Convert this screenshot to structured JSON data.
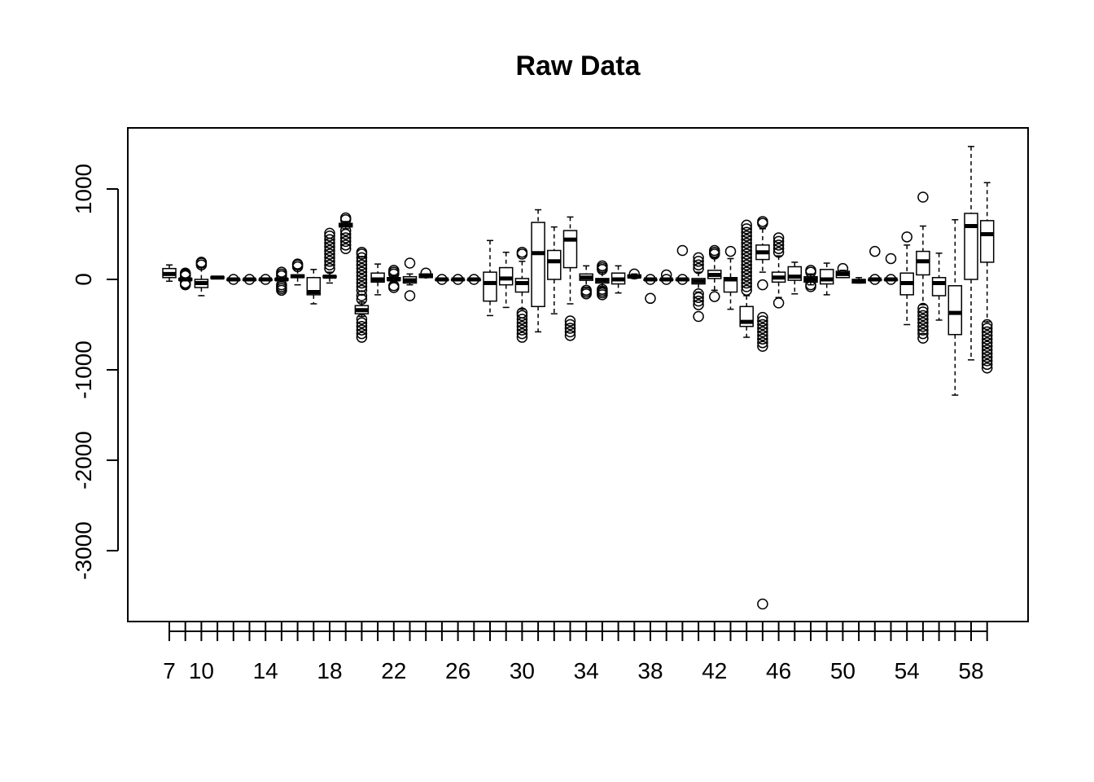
{
  "chart_data": {
    "type": "box",
    "title": "Raw Data",
    "xlabel": "",
    "ylabel": "",
    "ylim": [
      -3720,
      1680
    ],
    "y_ticks": [
      1000,
      0,
      -1000,
      -2000,
      -3000
    ],
    "y_tick_labels": [
      "1000",
      "0",
      "-1000",
      "-2000",
      "-3000"
    ],
    "x_tick_labels": [
      "7",
      "10",
      "14",
      "18",
      "22",
      "26",
      "30",
      "34",
      "38",
      "42",
      "46",
      "50",
      "54",
      "58"
    ],
    "boxes": [
      {
        "pos": 1,
        "q1": 20,
        "median": 60,
        "q3": 120,
        "lo": -20,
        "hi": 160,
        "outliers": []
      },
      {
        "pos": 2,
        "q1": -10,
        "median": 0,
        "q3": 10,
        "lo": -10,
        "hi": 10,
        "outliers": [
          -60,
          -50,
          -40,
          40,
          50,
          60,
          70
        ]
      },
      {
        "pos": 3,
        "q1": -90,
        "median": -40,
        "q3": 0,
        "lo": -180,
        "hi": 130,
        "outliers": [
          160,
          180,
          190
        ]
      },
      {
        "pos": 4,
        "q1": 10,
        "median": 20,
        "q3": 30,
        "lo": 10,
        "hi": 30,
        "outliers": []
      },
      {
        "pos": 5,
        "q1": 0,
        "median": 0,
        "q3": 0,
        "lo": 0,
        "hi": 0,
        "outliers": [
          0
        ]
      },
      {
        "pos": 6,
        "q1": 0,
        "median": 0,
        "q3": 0,
        "lo": 0,
        "hi": 0,
        "outliers": [
          0
        ]
      },
      {
        "pos": 7,
        "q1": 0,
        "median": 0,
        "q3": 0,
        "lo": 0,
        "hi": 0,
        "outliers": [
          0
        ]
      },
      {
        "pos": 8,
        "q1": -10,
        "median": 0,
        "q3": 10,
        "lo": -10,
        "hi": 10,
        "outliers": [
          -120,
          -100,
          -80,
          -60,
          40,
          60,
          80
        ]
      },
      {
        "pos": 9,
        "q1": 20,
        "median": 35,
        "q3": 50,
        "lo": -60,
        "hi": 110,
        "outliers": [
          140,
          160,
          170
        ]
      },
      {
        "pos": 10,
        "q1": -170,
        "median": -140,
        "q3": 20,
        "lo": -270,
        "hi": 110,
        "outliers": []
      },
      {
        "pos": 11,
        "q1": 20,
        "median": 30,
        "q3": 40,
        "lo": -40,
        "hi": 80,
        "outliers": [
          120,
          160,
          200,
          240,
          280,
          320,
          360,
          400,
          440,
          480,
          510
        ]
      },
      {
        "pos": 12,
        "q1": 580,
        "median": 600,
        "q3": 620,
        "lo": 560,
        "hi": 640,
        "outliers": [
          340,
          380,
          420,
          460,
          500,
          540,
          660,
          680
        ]
      },
      {
        "pos": 13,
        "q1": -380,
        "median": -340,
        "q3": -290,
        "lo": -410,
        "hi": -250,
        "outliers": [
          -640,
          -600,
          -560,
          -520,
          -480,
          -440,
          -220,
          -180,
          -120,
          -80,
          -40,
          0,
          40,
          80,
          120,
          160,
          200,
          240,
          280,
          300
        ]
      },
      {
        "pos": 14,
        "q1": -30,
        "median": 0,
        "q3": 70,
        "lo": -170,
        "hi": 170,
        "outliers": []
      },
      {
        "pos": 15,
        "q1": -10,
        "median": 0,
        "q3": 20,
        "lo": -30,
        "hi": 40,
        "outliers": [
          -90,
          -70,
          60,
          80,
          100
        ]
      },
      {
        "pos": 16,
        "q1": -40,
        "median": -10,
        "q3": 30,
        "lo": -60,
        "hi": 60,
        "outliers": [
          -180,
          180
        ]
      },
      {
        "pos": 17,
        "q1": 20,
        "median": 40,
        "q3": 60,
        "lo": 20,
        "hi": 60,
        "outliers": [
          70
        ]
      },
      {
        "pos": 18,
        "q1": 0,
        "median": 0,
        "q3": 0,
        "lo": 0,
        "hi": 0,
        "outliers": [
          0
        ]
      },
      {
        "pos": 19,
        "q1": 0,
        "median": 0,
        "q3": 0,
        "lo": 0,
        "hi": 0,
        "outliers": [
          0
        ]
      },
      {
        "pos": 20,
        "q1": 0,
        "median": 0,
        "q3": 0,
        "lo": 0,
        "hi": 0,
        "outliers": [
          0
        ]
      },
      {
        "pos": 21,
        "q1": -240,
        "median": -40,
        "q3": 80,
        "lo": -400,
        "hi": 430,
        "outliers": []
      },
      {
        "pos": 22,
        "q1": -60,
        "median": 10,
        "q3": 130,
        "lo": -310,
        "hi": 300,
        "outliers": []
      },
      {
        "pos": 23,
        "q1": -140,
        "median": -40,
        "q3": 10,
        "lo": -330,
        "hi": 200,
        "outliers": [
          -640,
          -600,
          -560,
          -520,
          -480,
          -440,
          -400,
          -370,
          280,
          300
        ]
      },
      {
        "pos": 24,
        "q1": -300,
        "median": 290,
        "q3": 630,
        "lo": -580,
        "hi": 770,
        "outliers": []
      },
      {
        "pos": 25,
        "q1": 0,
        "median": 200,
        "q3": 320,
        "lo": -380,
        "hi": 580,
        "outliers": []
      },
      {
        "pos": 26,
        "q1": 130,
        "median": 440,
        "q3": 540,
        "lo": -270,
        "hi": 690,
        "outliers": [
          -620,
          -580,
          -540,
          -500,
          -460
        ]
      },
      {
        "pos": 27,
        "q1": -10,
        "median": 20,
        "q3": 60,
        "lo": -90,
        "hi": 150,
        "outliers": [
          -160,
          -140,
          -120
        ]
      },
      {
        "pos": 28,
        "q1": -40,
        "median": -10,
        "q3": 10,
        "lo": -90,
        "hi": 80,
        "outliers": [
          -170,
          -150,
          -130,
          -110,
          110,
          130,
          150
        ]
      },
      {
        "pos": 29,
        "q1": -50,
        "median": 0,
        "q3": 70,
        "lo": -150,
        "hi": 150,
        "outliers": []
      },
      {
        "pos": 30,
        "q1": 20,
        "median": 30,
        "q3": 50,
        "lo": 10,
        "hi": 60,
        "outliers": [
          60
        ]
      },
      {
        "pos": 31,
        "q1": 0,
        "median": 0,
        "q3": 0,
        "lo": 0,
        "hi": 0,
        "outliers": [
          -210,
          0
        ]
      },
      {
        "pos": 32,
        "q1": 0,
        "median": 0,
        "q3": 0,
        "lo": 0,
        "hi": 0,
        "outliers": [
          0,
          50
        ]
      },
      {
        "pos": 33,
        "q1": 0,
        "median": 0,
        "q3": 0,
        "lo": 0,
        "hi": 0,
        "outliers": [
          0,
          320
        ]
      },
      {
        "pos": 34,
        "q1": -50,
        "median": -20,
        "q3": 10,
        "lo": -140,
        "hi": 80,
        "outliers": [
          -410,
          -280,
          -240,
          -200,
          -160,
          120,
          160,
          200,
          240
        ]
      },
      {
        "pos": 35,
        "q1": 10,
        "median": 50,
        "q3": 100,
        "lo": -120,
        "hi": 240,
        "outliers": [
          -190,
          280,
          300,
          320
        ]
      },
      {
        "pos": 36,
        "q1": -140,
        "median": 0,
        "q3": 20,
        "lo": -330,
        "hi": 230,
        "outliers": [
          310
        ]
      },
      {
        "pos": 37,
        "q1": -520,
        "median": -470,
        "q3": -300,
        "lo": -640,
        "hi": -180,
        "outliers": [
          -120,
          -80,
          -40,
          0,
          40,
          80,
          120,
          160,
          200,
          240,
          280,
          320,
          360,
          400,
          440,
          480,
          520,
          560,
          600
        ]
      },
      {
        "pos": 38,
        "q1": 220,
        "median": 300,
        "q3": 380,
        "lo": 80,
        "hi": 560,
        "outliers": [
          -3590,
          -740,
          -700,
          -660,
          -620,
          -580,
          -540,
          -500,
          -460,
          -420,
          -60,
          620,
          640
        ]
      },
      {
        "pos": 39,
        "q1": -30,
        "median": 20,
        "q3": 80,
        "lo": -200,
        "hi": 260,
        "outliers": [
          -260,
          300,
          340,
          380,
          420,
          460
        ]
      },
      {
        "pos": 40,
        "q1": -10,
        "median": 30,
        "q3": 140,
        "lo": -160,
        "hi": 190,
        "outliers": []
      },
      {
        "pos": 41,
        "q1": -30,
        "median": 0,
        "q3": 30,
        "lo": -60,
        "hi": 60,
        "outliers": [
          -80,
          -60,
          80,
          100
        ]
      },
      {
        "pos": 42,
        "q1": -50,
        "median": 0,
        "q3": 110,
        "lo": -170,
        "hi": 180,
        "outliers": []
      },
      {
        "pos": 43,
        "q1": 20,
        "median": 60,
        "q3": 90,
        "lo": 20,
        "hi": 100,
        "outliers": [
          120
        ]
      },
      {
        "pos": 44,
        "q1": -40,
        "median": -20,
        "q3": 0,
        "lo": -40,
        "hi": 20,
        "outliers": []
      },
      {
        "pos": 45,
        "q1": 0,
        "median": 0,
        "q3": 0,
        "lo": 0,
        "hi": 0,
        "outliers": [
          0,
          310
        ]
      },
      {
        "pos": 46,
        "q1": 0,
        "median": 0,
        "q3": 0,
        "lo": 0,
        "hi": 0,
        "outliers": [
          0,
          230
        ]
      },
      {
        "pos": 47,
        "q1": -170,
        "median": -40,
        "q3": 70,
        "lo": -500,
        "hi": 380,
        "outliers": [
          470
        ]
      },
      {
        "pos": 48,
        "q1": 50,
        "median": 200,
        "q3": 310,
        "lo": -280,
        "hi": 590,
        "outliers": [
          -650,
          -600,
          -560,
          -520,
          -480,
          -440,
          -400,
          -360,
          -320,
          910
        ]
      },
      {
        "pos": 49,
        "q1": -180,
        "median": -40,
        "q3": 20,
        "lo": -450,
        "hi": 290,
        "outliers": []
      },
      {
        "pos": 50,
        "q1": -610,
        "median": -370,
        "q3": -70,
        "lo": -1280,
        "hi": 660,
        "outliers": []
      },
      {
        "pos": 51,
        "q1": 0,
        "median": 590,
        "q3": 730,
        "lo": -890,
        "hi": 1470,
        "outliers": []
      },
      {
        "pos": 52,
        "q1": 190,
        "median": 500,
        "q3": 650,
        "lo": -470,
        "hi": 1070,
        "outliers": [
          -980,
          -940,
          -900,
          -860,
          -820,
          -780,
          -740,
          -700,
          -660,
          -620,
          -580,
          -540,
          -500
        ]
      }
    ]
  }
}
